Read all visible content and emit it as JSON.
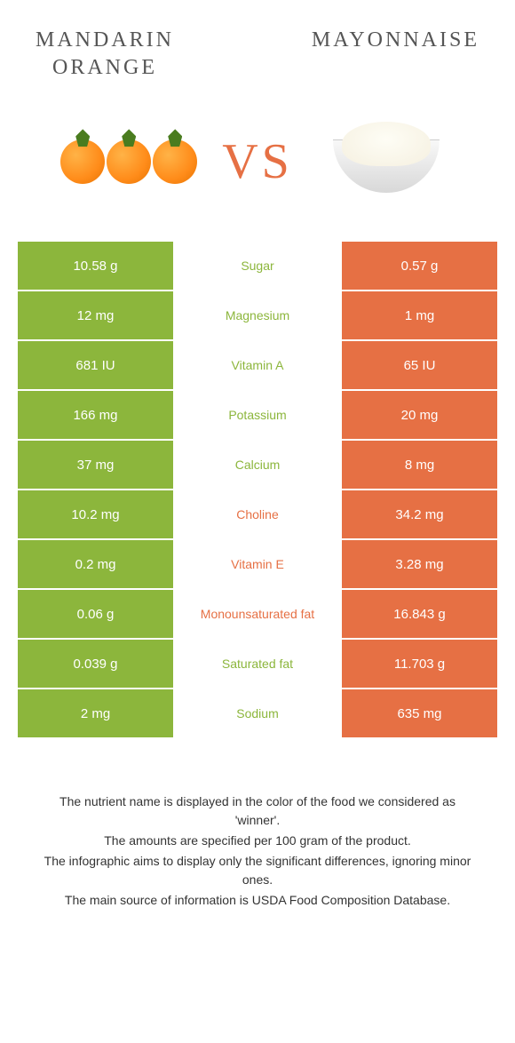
{
  "colors": {
    "green": "#8cb63c",
    "orange": "#e67044",
    "green_text": "#8cb63c",
    "orange_text": "#e67044"
  },
  "header": {
    "left": "MANDARIN\nORANGE",
    "right": "MAYONNAISE"
  },
  "vs": "VS",
  "rows": [
    {
      "left": "10.58 g",
      "mid": "Sugar",
      "right": "0.57 g",
      "winner": "left"
    },
    {
      "left": "12 mg",
      "mid": "Magnesium",
      "right": "1 mg",
      "winner": "left"
    },
    {
      "left": "681 IU",
      "mid": "Vitamin A",
      "right": "65 IU",
      "winner": "left"
    },
    {
      "left": "166 mg",
      "mid": "Potassium",
      "right": "20 mg",
      "winner": "left"
    },
    {
      "left": "37 mg",
      "mid": "Calcium",
      "right": "8 mg",
      "winner": "left"
    },
    {
      "left": "10.2 mg",
      "mid": "Choline",
      "right": "34.2 mg",
      "winner": "right"
    },
    {
      "left": "0.2 mg",
      "mid": "Vitamin E",
      "right": "3.28 mg",
      "winner": "right"
    },
    {
      "left": "0.06 g",
      "mid": "Monounsaturated fat",
      "right": "16.843 g",
      "winner": "right"
    },
    {
      "left": "0.039 g",
      "mid": "Saturated fat",
      "right": "11.703 g",
      "winner": "left"
    },
    {
      "left": "2 mg",
      "mid": "Sodium",
      "right": "635 mg",
      "winner": "left"
    }
  ],
  "notes": [
    "The nutrient name is displayed in the color of the food we considered as 'winner'.",
    "The amounts are specified per 100 gram of the product.",
    "The infographic aims to display only the significant differences, ignoring minor ones.",
    "The main source of information is USDA Food Composition Database."
  ]
}
